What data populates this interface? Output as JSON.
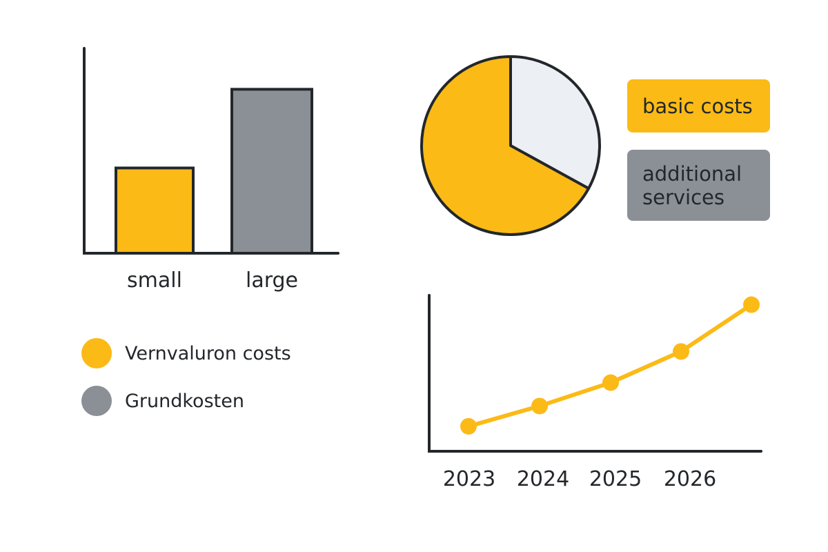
{
  "colors": {
    "yellow": "#FBBA16",
    "gray": "#8A9096",
    "light": "#ECEFF3",
    "axis": "#23272B"
  },
  "chart_data": [
    {
      "type": "bar",
      "categories": [
        "small",
        "large"
      ],
      "values": [
        52,
        100
      ],
      "colors": [
        "#FBBA16",
        "#8A9096"
      ],
      "ylim": [
        0,
        125
      ],
      "grid": false,
      "legend": {
        "placement": "bottom-left",
        "entries": [
          {
            "label": "Vernvaluron costs",
            "color": "#FBBA16"
          },
          {
            "label": "Grundkosten",
            "color": "#8A9096"
          }
        ]
      }
    },
    {
      "type": "pie",
      "slices": [
        {
          "label": "basic costs",
          "value": 67,
          "color": "#FBBA16"
        },
        {
          "label": "additional services",
          "value": 33,
          "color": "#ECEFF3"
        }
      ],
      "legend": {
        "placement": "right",
        "entries": [
          {
            "label": "basic costs",
            "color": "#FBBA16"
          },
          {
            "label": "additional services",
            "color": "#8A9096"
          }
        ]
      }
    },
    {
      "type": "line",
      "x": [
        "2023",
        "2024",
        "2025",
        "2026",
        ""
      ],
      "values": [
        16,
        29,
        44,
        64,
        94
      ],
      "color": "#FBBA16",
      "ylim": [
        0,
        100
      ],
      "grid": false
    }
  ]
}
